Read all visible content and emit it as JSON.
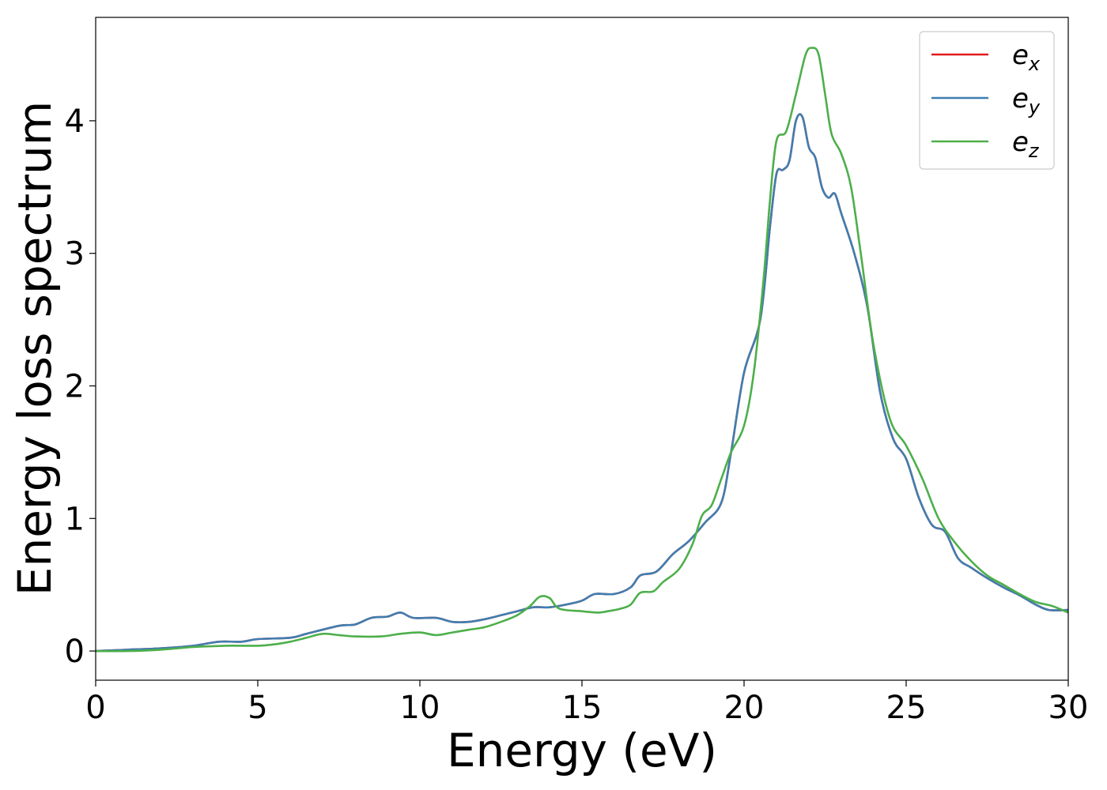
{
  "chart_data": {
    "type": "line",
    "title": "",
    "xlabel": "Energy (eV)",
    "ylabel": "Energy loss spectrum",
    "xlim": [
      0,
      30
    ],
    "ylim": [
      -0.22,
      4.78
    ],
    "x_ticks": [
      "0",
      "5",
      "10",
      "15",
      "20",
      "25",
      "30"
    ],
    "y_ticks": [
      "0",
      "1",
      "2",
      "3",
      "4"
    ],
    "grid": false,
    "legend_position": "top-right",
    "series": [
      {
        "name": "e_x",
        "legend_base": "e",
        "legend_sub": "x",
        "color": "#e41a1c",
        "x": [
          0,
          1,
          2,
          3,
          3.8,
          4.5,
          5,
          6,
          6.5,
          7.5,
          8,
          8.5,
          9,
          9.4,
          9.8,
          10.5,
          11,
          11.5,
          12,
          12.5,
          13,
          13.5,
          14,
          14.5,
          15,
          15.4,
          16,
          16.5,
          16.8,
          17.3,
          17.8,
          18.3,
          18.8,
          19.3,
          19.6,
          20,
          20.5,
          20.8,
          21,
          21.2,
          21.4,
          21.6,
          21.8,
          22,
          22.2,
          22.4,
          22.6,
          22.8,
          23,
          23.4,
          23.8,
          24.2,
          24.6,
          25,
          25.4,
          25.8,
          26.2,
          26.6,
          27,
          27.5,
          28,
          28.5,
          29,
          29.4,
          30
        ],
        "y": [
          0,
          0.01,
          0.02,
          0.04,
          0.07,
          0.07,
          0.09,
          0.1,
          0.13,
          0.19,
          0.2,
          0.25,
          0.26,
          0.29,
          0.25,
          0.25,
          0.22,
          0.22,
          0.24,
          0.27,
          0.3,
          0.33,
          0.33,
          0.35,
          0.38,
          0.43,
          0.43,
          0.48,
          0.57,
          0.6,
          0.73,
          0.83,
          0.97,
          1.12,
          1.5,
          2.1,
          2.5,
          3.2,
          3.6,
          3.63,
          3.7,
          4.0,
          4.03,
          3.8,
          3.72,
          3.5,
          3.42,
          3.45,
          3.3,
          3.0,
          2.6,
          1.95,
          1.6,
          1.45,
          1.15,
          0.95,
          0.9,
          0.7,
          0.63,
          0.55,
          0.48,
          0.42,
          0.35,
          0.31,
          0.31
        ]
      },
      {
        "name": "e_y",
        "legend_base": "e",
        "legend_sub": "y",
        "color": "#3f7eb0",
        "x": [
          0,
          1,
          2,
          3,
          3.8,
          4.5,
          5,
          6,
          6.5,
          7.5,
          8,
          8.5,
          9,
          9.4,
          9.8,
          10.5,
          11,
          11.5,
          12,
          12.5,
          13,
          13.5,
          14,
          14.5,
          15,
          15.4,
          16,
          16.5,
          16.8,
          17.3,
          17.8,
          18.3,
          18.8,
          19.3,
          19.6,
          20,
          20.5,
          20.8,
          21,
          21.2,
          21.4,
          21.6,
          21.8,
          22,
          22.2,
          22.4,
          22.6,
          22.8,
          23,
          23.4,
          23.8,
          24.2,
          24.6,
          25,
          25.4,
          25.8,
          26.2,
          26.6,
          27,
          27.5,
          28,
          28.5,
          29,
          29.4,
          30
        ],
        "y": [
          0,
          0.01,
          0.02,
          0.04,
          0.07,
          0.07,
          0.09,
          0.1,
          0.13,
          0.19,
          0.2,
          0.25,
          0.26,
          0.29,
          0.25,
          0.25,
          0.22,
          0.22,
          0.24,
          0.27,
          0.3,
          0.33,
          0.33,
          0.35,
          0.38,
          0.43,
          0.43,
          0.48,
          0.57,
          0.6,
          0.73,
          0.83,
          0.97,
          1.12,
          1.5,
          2.1,
          2.5,
          3.2,
          3.6,
          3.63,
          3.7,
          4.0,
          4.03,
          3.8,
          3.72,
          3.5,
          3.42,
          3.45,
          3.3,
          3.0,
          2.6,
          1.95,
          1.6,
          1.45,
          1.15,
          0.95,
          0.9,
          0.7,
          0.63,
          0.55,
          0.48,
          0.42,
          0.35,
          0.31,
          0.31
        ]
      },
      {
        "name": "e_z",
        "legend_base": "e",
        "legend_sub": "z",
        "color": "#4daf4a",
        "x": [
          0,
          1,
          2,
          3,
          4,
          5,
          5.5,
          6,
          6.5,
          7,
          7.5,
          8,
          8.8,
          9.4,
          10,
          10.5,
          11,
          11.5,
          12,
          12.5,
          13,
          13.4,
          13.7,
          14,
          14.3,
          15,
          15.5,
          15.8,
          16.2,
          16.5,
          16.8,
          17.2,
          17.5,
          18,
          18.4,
          18.7,
          19,
          19.3,
          19.6,
          20,
          20.3,
          20.6,
          20.8,
          21,
          21.3,
          21.6,
          21.9,
          22.1,
          22.3,
          22.5,
          22.7,
          23,
          23.3,
          23.6,
          24,
          24.5,
          25,
          25.5,
          26,
          26.5,
          27,
          27.5,
          28,
          28.5,
          29,
          29.5,
          30
        ],
        "y": [
          0,
          0,
          0.01,
          0.03,
          0.04,
          0.04,
          0.05,
          0.07,
          0.1,
          0.13,
          0.12,
          0.11,
          0.11,
          0.13,
          0.14,
          0.12,
          0.14,
          0.16,
          0.18,
          0.22,
          0.27,
          0.34,
          0.41,
          0.4,
          0.32,
          0.3,
          0.29,
          0.3,
          0.32,
          0.35,
          0.44,
          0.45,
          0.52,
          0.62,
          0.8,
          1.02,
          1.1,
          1.3,
          1.5,
          1.7,
          2.1,
          2.8,
          3.4,
          3.85,
          3.92,
          4.2,
          4.5,
          4.55,
          4.5,
          4.2,
          3.9,
          3.75,
          3.5,
          3.0,
          2.3,
          1.75,
          1.55,
          1.3,
          1.0,
          0.82,
          0.68,
          0.57,
          0.5,
          0.43,
          0.37,
          0.34,
          0.29
        ]
      }
    ]
  }
}
